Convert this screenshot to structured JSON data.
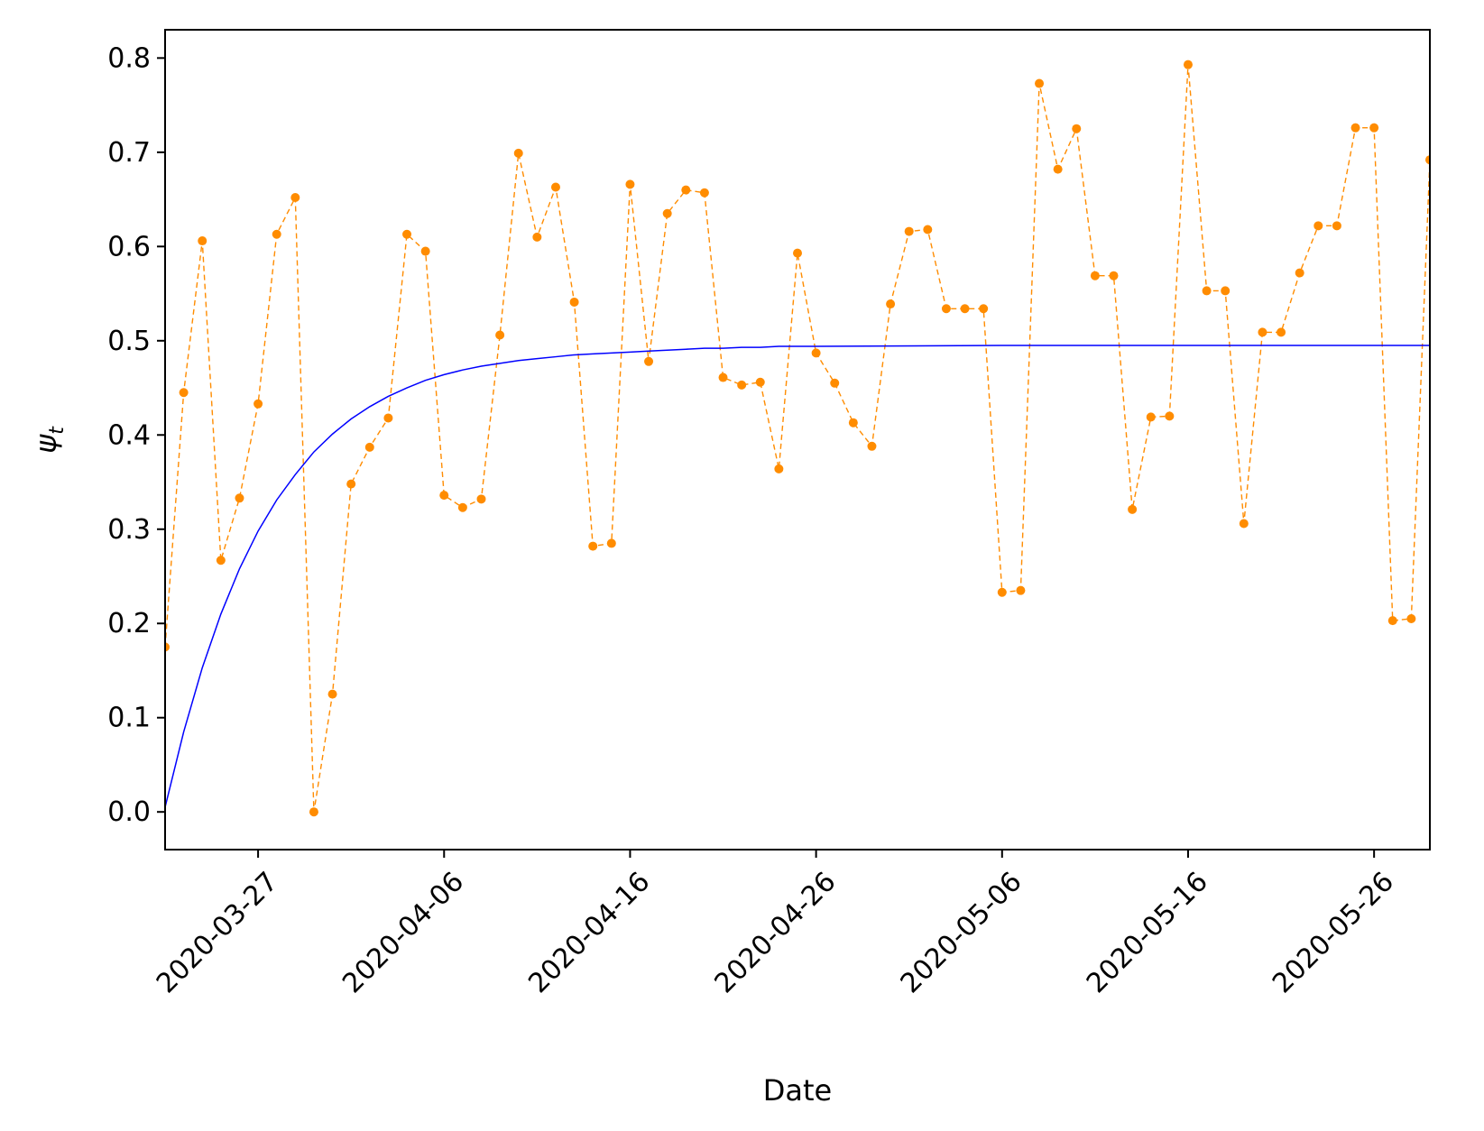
{
  "chart_data": {
    "type": "line",
    "xlabel": "Date",
    "ylabel": "ψ",
    "ylabel_subscript": "t",
    "x_start": "2020-03-22",
    "x_range": [
      "2020-03-22",
      "2020-05-29"
    ],
    "ylim": [
      -0.04,
      0.83
    ],
    "grid": false,
    "x_ticks": [
      "2020-03-27",
      "2020-04-06",
      "2020-04-16",
      "2020-04-26",
      "2020-05-06",
      "2020-05-16",
      "2020-05-26"
    ],
    "y_ticks": [
      "0.0",
      "0.1",
      "0.2",
      "0.3",
      "0.4",
      "0.5",
      "0.6",
      "0.7",
      "0.8"
    ],
    "series": [
      {
        "style": "dashed-markers",
        "color": "#ff8c00",
        "x": [
          "2020-03-22",
          "2020-03-23",
          "2020-03-24",
          "2020-03-25",
          "2020-03-26",
          "2020-03-27",
          "2020-03-28",
          "2020-03-29",
          "2020-03-30",
          "2020-03-31",
          "2020-04-01",
          "2020-04-02",
          "2020-04-03",
          "2020-04-04",
          "2020-04-05",
          "2020-04-06",
          "2020-04-07",
          "2020-04-08",
          "2020-04-09",
          "2020-04-10",
          "2020-04-11",
          "2020-04-12",
          "2020-04-13",
          "2020-04-14",
          "2020-04-15",
          "2020-04-16",
          "2020-04-17",
          "2020-04-18",
          "2020-04-19",
          "2020-04-20",
          "2020-04-21",
          "2020-04-22",
          "2020-04-23",
          "2020-04-24",
          "2020-04-25",
          "2020-04-26",
          "2020-04-27",
          "2020-04-28",
          "2020-04-29",
          "2020-04-30",
          "2020-05-01",
          "2020-05-02",
          "2020-05-03",
          "2020-05-04",
          "2020-05-05",
          "2020-05-06",
          "2020-05-07",
          "2020-05-08",
          "2020-05-09",
          "2020-05-10",
          "2020-05-11",
          "2020-05-12",
          "2020-05-13",
          "2020-05-14",
          "2020-05-15",
          "2020-05-16",
          "2020-05-17",
          "2020-05-18",
          "2020-05-19",
          "2020-05-20",
          "2020-05-21",
          "2020-05-22",
          "2020-05-23",
          "2020-05-24",
          "2020-05-25",
          "2020-05-26",
          "2020-05-27",
          "2020-05-28",
          "2020-05-29"
        ],
        "values": [
          0.175,
          0.445,
          0.606,
          0.267,
          0.333,
          0.433,
          0.613,
          0.652,
          0.0,
          0.125,
          0.348,
          0.387,
          0.418,
          0.613,
          0.595,
          0.336,
          0.323,
          0.332,
          0.506,
          0.699,
          0.61,
          0.663,
          0.541,
          0.282,
          0.285,
          0.666,
          0.478,
          0.635,
          0.66,
          0.657,
          0.461,
          0.453,
          0.456,
          0.364,
          0.593,
          0.487,
          0.455,
          0.413,
          0.388,
          0.539,
          0.616,
          0.618,
          0.534,
          0.534,
          0.534,
          0.233,
          0.235,
          0.773,
          0.682,
          0.725,
          0.569,
          0.569,
          0.321,
          0.419,
          0.42,
          0.793,
          0.553,
          0.553,
          0.306,
          0.509,
          0.509,
          0.572,
          0.622,
          0.622,
          0.726,
          0.726,
          0.203,
          0.205,
          0.692
        ]
      },
      {
        "style": "solid",
        "color": "#0000ff",
        "x": [
          "2020-03-22",
          "2020-03-23",
          "2020-03-24",
          "2020-03-25",
          "2020-03-26",
          "2020-03-27",
          "2020-03-28",
          "2020-03-29",
          "2020-03-30",
          "2020-03-31",
          "2020-04-01",
          "2020-04-02",
          "2020-04-03",
          "2020-04-04",
          "2020-04-05",
          "2020-04-06",
          "2020-04-07",
          "2020-04-08",
          "2020-04-09",
          "2020-04-10",
          "2020-04-11",
          "2020-04-12",
          "2020-04-13",
          "2020-04-14",
          "2020-04-15",
          "2020-04-16",
          "2020-04-17",
          "2020-04-18",
          "2020-04-19",
          "2020-04-20",
          "2020-04-21",
          "2020-04-22",
          "2020-04-23",
          "2020-04-24",
          "2020-04-25",
          "2020-04-26",
          "2020-05-06",
          "2020-05-16",
          "2020-05-26",
          "2020-05-29"
        ],
        "values": [
          0.005,
          0.085,
          0.153,
          0.21,
          0.258,
          0.298,
          0.331,
          0.358,
          0.382,
          0.401,
          0.417,
          0.43,
          0.441,
          0.45,
          0.458,
          0.464,
          0.469,
          0.473,
          0.476,
          0.479,
          0.481,
          0.483,
          0.485,
          0.486,
          0.487,
          0.488,
          0.489,
          0.49,
          0.491,
          0.492,
          0.492,
          0.493,
          0.493,
          0.494,
          0.494,
          0.494,
          0.495,
          0.495,
          0.495,
          0.495
        ]
      }
    ]
  }
}
